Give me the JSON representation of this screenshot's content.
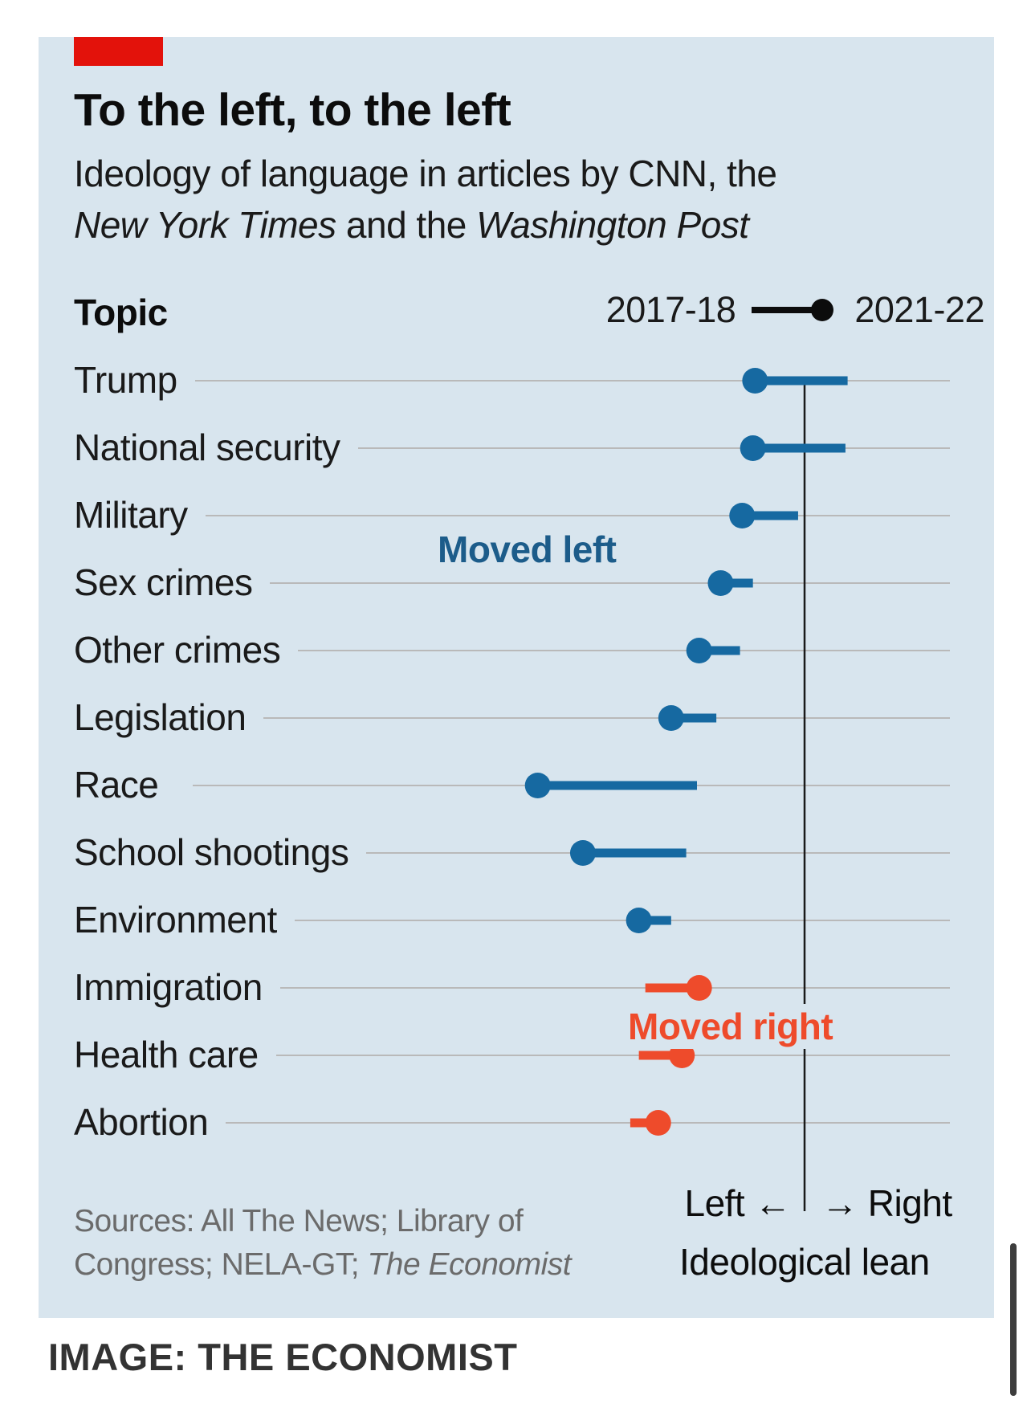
{
  "header": {
    "title": "To the left, to the left",
    "subtitle_part1": "Ideology of language in articles by CNN, the",
    "subtitle_italic1": "New York Times",
    "subtitle_part2": " and the ",
    "subtitle_italic2": "Washington Post"
  },
  "legend": {
    "column_label": "Topic",
    "start_label": "2017-18",
    "end_label": "2021-22"
  },
  "annotations": {
    "moved_left": "Moved left",
    "moved_right": "Moved right"
  },
  "axis": {
    "left_label": "Left ←",
    "right_label": "→ Right",
    "title": "Ideological lean"
  },
  "sources": {
    "line1": "Sources: All The News; Library of",
    "line2": "Congress; NELA-GT; ",
    "line2_italic": "The Economist"
  },
  "credit": "IMAGE: THE ECONOMIST",
  "colors": {
    "moved_left": "#1669a1",
    "moved_right": "#ee4b2b",
    "background": "#d8e5ee",
    "accent": "#e3120b"
  },
  "chart_data": {
    "type": "dumbbell",
    "x_range": [
      -1,
      1
    ],
    "neutral_x": 0,
    "series": [
      "2017-18",
      "2021-22"
    ],
    "categories": [
      "Trump",
      "National security",
      "Military",
      "Sex crimes",
      "Other crimes",
      "Legislation",
      "Race",
      "School shootings",
      "Environment",
      "Immigration",
      "Health care",
      "Abortion"
    ],
    "rows": [
      {
        "topic": "Trump",
        "start": 0.2,
        "end": -0.23,
        "direction": "left"
      },
      {
        "topic": "National security",
        "start": 0.19,
        "end": -0.24,
        "direction": "left"
      },
      {
        "topic": "Military",
        "start": -0.03,
        "end": -0.29,
        "direction": "left"
      },
      {
        "topic": "Sex crimes",
        "start": -0.24,
        "end": -0.39,
        "direction": "left"
      },
      {
        "topic": "Other crimes",
        "start": -0.3,
        "end": -0.49,
        "direction": "left"
      },
      {
        "topic": "Legislation",
        "start": -0.41,
        "end": -0.62,
        "direction": "left"
      },
      {
        "topic": "Race",
        "start": -0.5,
        "end": -1.24,
        "direction": "left"
      },
      {
        "topic": "School shootings",
        "start": -0.55,
        "end": -1.03,
        "direction": "left"
      },
      {
        "topic": "Environment",
        "start": -0.62,
        "end": -0.77,
        "direction": "left"
      },
      {
        "topic": "Immigration",
        "start": -0.74,
        "end": -0.49,
        "direction": "right"
      },
      {
        "topic": "Health care",
        "start": -0.77,
        "end": -0.57,
        "direction": "right"
      },
      {
        "topic": "Abortion",
        "start": -0.81,
        "end": -0.68,
        "direction": "right"
      }
    ]
  }
}
